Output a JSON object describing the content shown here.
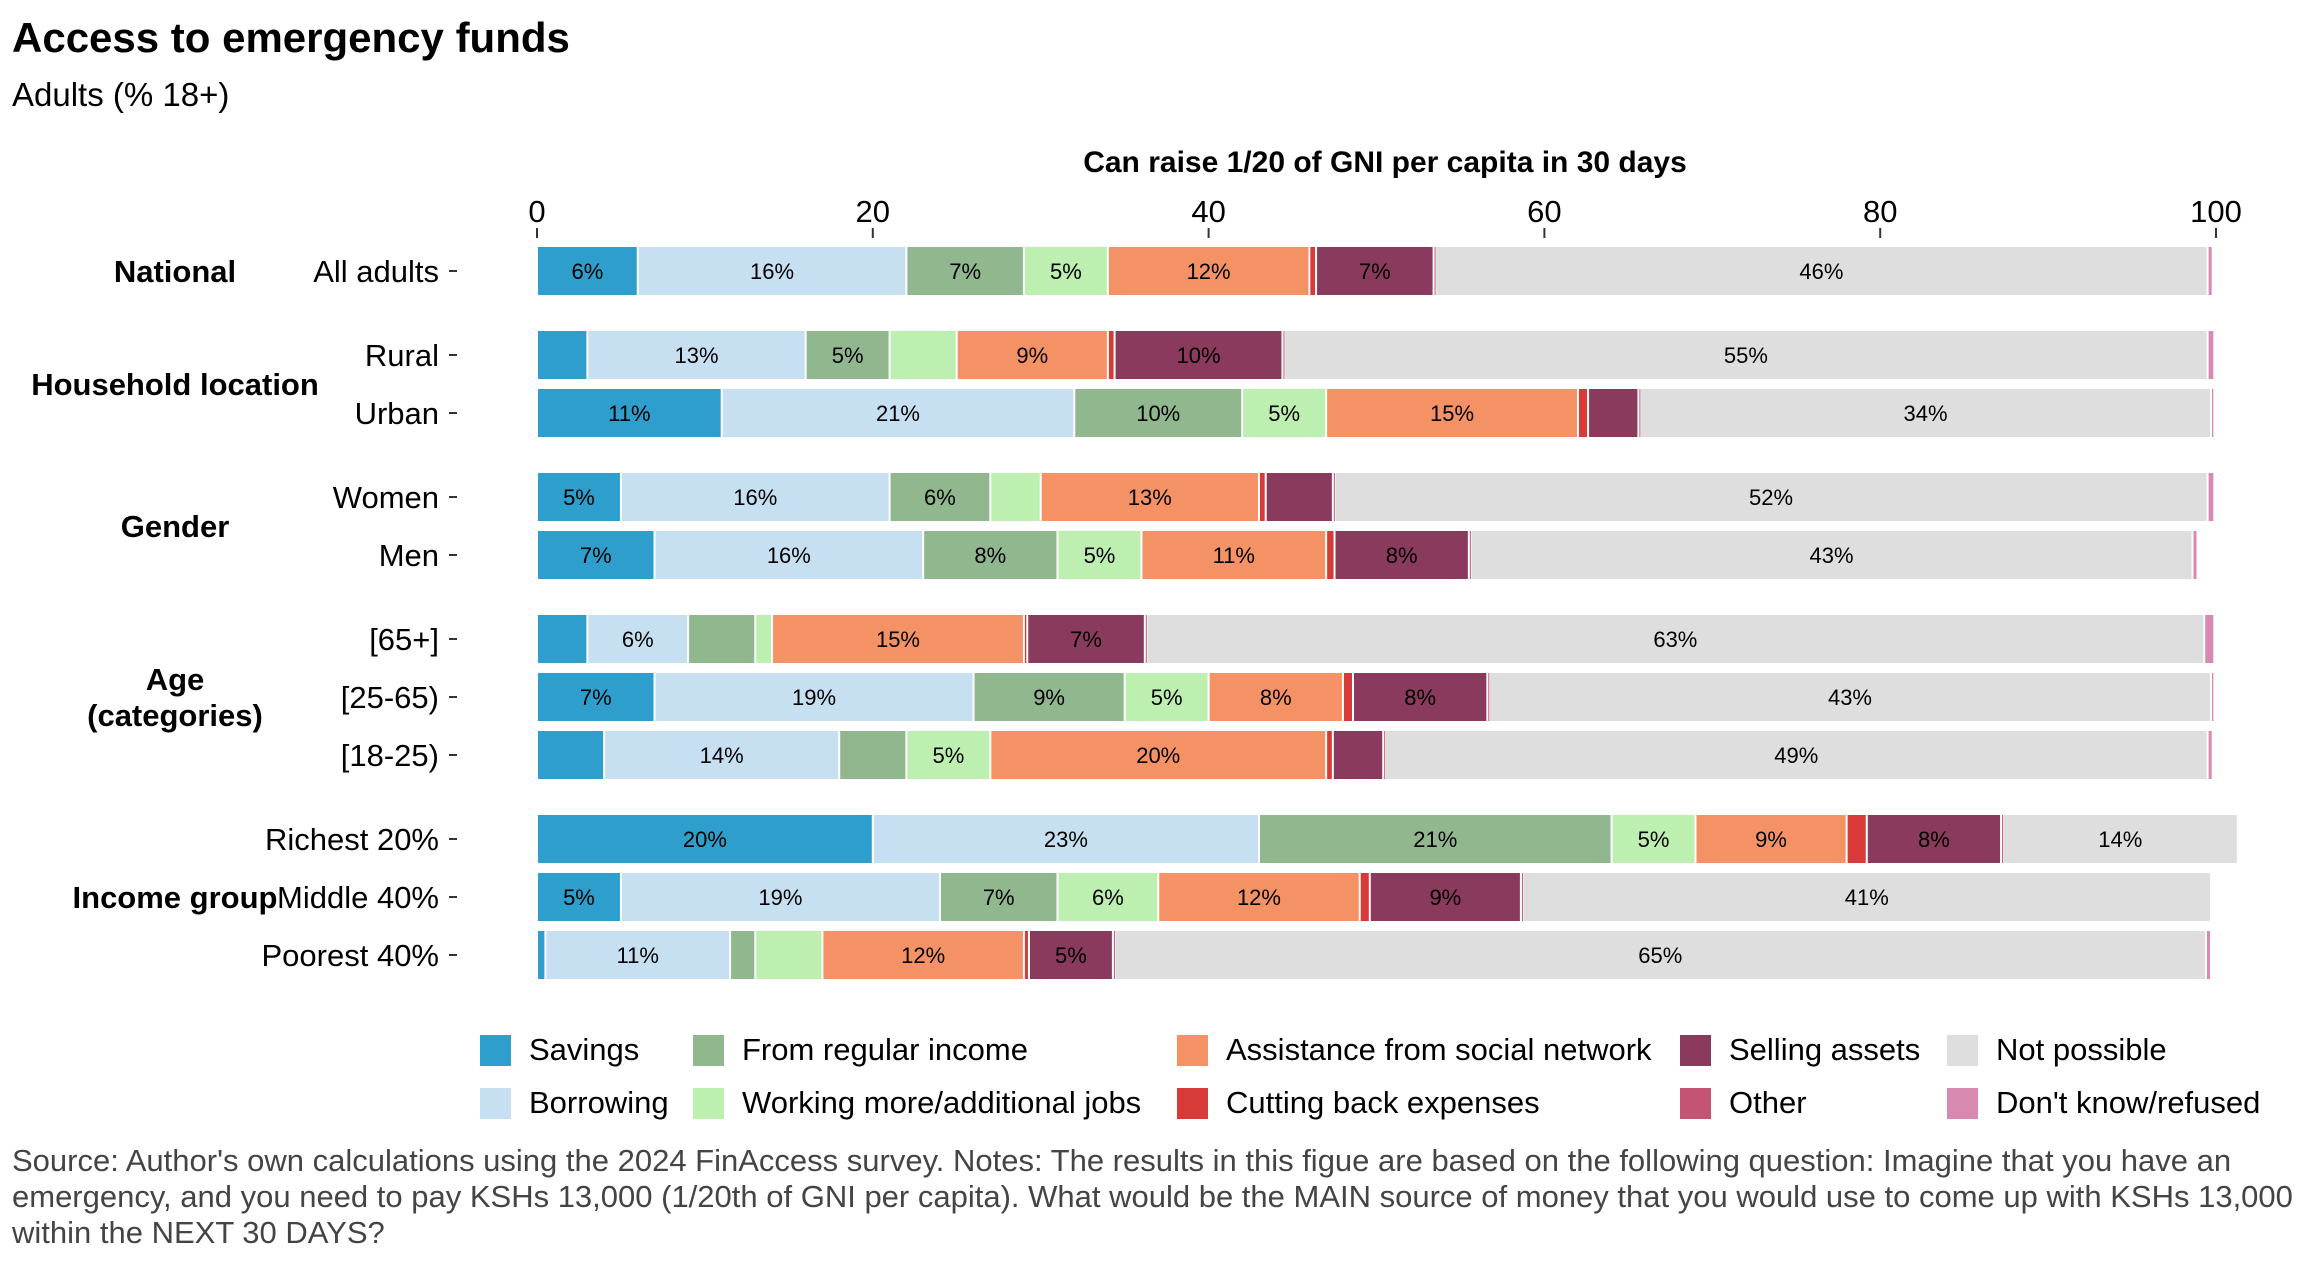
{
  "chart_data": {
    "type": "bar",
    "orientation": "horizontal",
    "stacked": true,
    "title": "Access to emergency funds",
    "subtitle": "Adults (% 18+)",
    "xlabel": "Can raise 1/20 of GNI per capita in 30 days",
    "xlim": [
      0,
      100
    ],
    "xticks": [
      0,
      20,
      40,
      60,
      80,
      100
    ],
    "grid": false,
    "legend_position": "bottom",
    "source_note": "Source: Author's own calculations using the 2024 FinAccess survey. Notes: The results in this figue are based on the following question: Imagine that you have an emergency, and you need to pay KSHs 13,000 (1/20th of GNI per capita). What would be the MAIN source of money that you would use to come up with KSHs 13,000 within the NEXT 30 DAYS?",
    "series": [
      {
        "name": "Savings",
        "color": "#2e9fcc"
      },
      {
        "name": "Borrowing",
        "color": "#c6e0f1"
      },
      {
        "name": "From regular income",
        "color": "#91b78f"
      },
      {
        "name": "Working more/additional jobs",
        "color": "#bdefb0"
      },
      {
        "name": "Assistance from social network",
        "color": "#f59265"
      },
      {
        "name": "Cutting back expenses",
        "color": "#d73a37"
      },
      {
        "name": "Selling assets",
        "color": "#8a3a5d"
      },
      {
        "name": "Other",
        "color": "#c45473"
      },
      {
        "name": "Not possible",
        "color": "#dedede"
      },
      {
        "name": "Don't know/refused",
        "color": "#d889b0"
      }
    ],
    "groups": [
      {
        "label": "National",
        "categories": [
          {
            "label": "All adults",
            "values": [
              6,
              16,
              7,
              5,
              12,
              0.4,
              7,
              0.1,
              46,
              0.3
            ]
          }
        ]
      },
      {
        "label": "Household location",
        "categories": [
          {
            "label": "Rural",
            "values": [
              3,
              13,
              5,
              4,
              9,
              0.4,
              10,
              0.1,
              55,
              0.4
            ]
          },
          {
            "label": "Urban",
            "values": [
              11,
              21,
              10,
              5,
              15,
              0.6,
              3,
              0.1,
              34,
              0.2
            ]
          }
        ]
      },
      {
        "label": "Gender",
        "categories": [
          {
            "label": "Women",
            "values": [
              5,
              16,
              6,
              3,
              13,
              0.4,
              4,
              0.1,
              52,
              0.4
            ]
          },
          {
            "label": "Men",
            "values": [
              7,
              16,
              8,
              5,
              11,
              0.5,
              8,
              0.1,
              43,
              0.3
            ]
          }
        ]
      },
      {
        "label": "Age\n(categories)",
        "categories": [
          {
            "label": "[65+]",
            "values": [
              3,
              6,
              4,
              1,
              15,
              0.2,
              7,
              0.1,
              63,
              0.6
            ]
          },
          {
            "label": "[25-65)",
            "values": [
              7,
              19,
              9,
              5,
              8,
              0.6,
              8,
              0.1,
              43,
              0.2
            ]
          },
          {
            "label": "[18-25)",
            "values": [
              4,
              14,
              4,
              5,
              20,
              0.4,
              3,
              0.1,
              49,
              0.3
            ]
          }
        ]
      },
      {
        "label": "Income group",
        "categories": [
          {
            "label": "Richest 20%",
            "values": [
              20,
              23,
              21,
              5,
              9,
              1.2,
              8,
              0.1,
              14,
              0
            ]
          },
          {
            "label": "Middle 40%",
            "values": [
              5,
              19,
              7,
              6,
              12,
              0.6,
              9,
              0.1,
              41,
              0
            ]
          },
          {
            "label": "Poorest 40%",
            "values": [
              0.5,
              11,
              1.5,
              4,
              12,
              0.3,
              5,
              0.1,
              65,
              0.3
            ]
          }
        ]
      }
    ]
  }
}
